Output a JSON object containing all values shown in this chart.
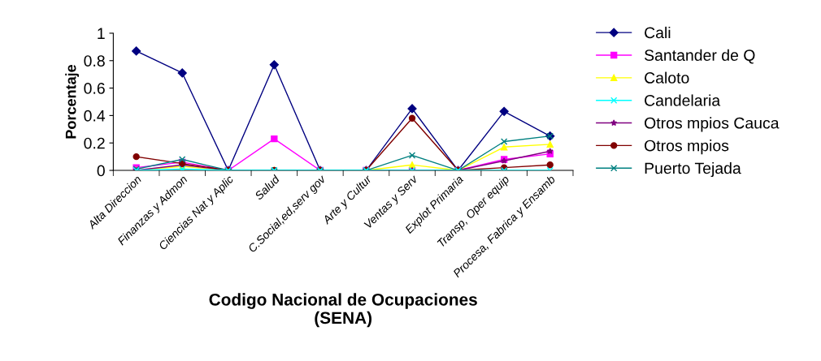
{
  "chart_data": {
    "type": "line",
    "xlabel": "Codigo Nacional de Ocupaciones\n(SENA)",
    "ylabel": "Porcentaje",
    "categories": [
      "Alta Direccion",
      "Finanzas y Admon",
      "Ciencias Nat y Aplic",
      "Salud",
      "C.Social,ed,serv gov",
      "Arte y Cultur",
      "Ventas y Serv",
      "Explot Primaria",
      "Transp, Oper equip",
      "Procesa, Fabrica y Ensamb"
    ],
    "ylim": [
      0,
      1
    ],
    "yticks": [
      0,
      0.2,
      0.4,
      0.6,
      0.8,
      1
    ],
    "grid": false,
    "legend": "right",
    "series": [
      {
        "name": "Cali",
        "color": "#000080",
        "marker": "diamond",
        "values": [
          0.87,
          0.71,
          0,
          0.77,
          0,
          0,
          0.45,
          0,
          0.43,
          0.25
        ]
      },
      {
        "name": "Santander de Q",
        "color": "#ff00ff",
        "marker": "square",
        "values": [
          0.02,
          0.06,
          0,
          0.23,
          0,
          0,
          0,
          0,
          0.08,
          0.12
        ]
      },
      {
        "name": "Caloto",
        "color": "#ffff00",
        "marker": "triangle",
        "values": [
          0,
          0.03,
          0,
          0,
          0,
          0,
          0.04,
          0,
          0.17,
          0.19
        ]
      },
      {
        "name": "Candelaria",
        "color": "#00ffff",
        "marker": "cross",
        "values": [
          0,
          0.01,
          0,
          0,
          0,
          0,
          0,
          0,
          0,
          0
        ]
      },
      {
        "name": "Otros mpios Cauca",
        "color": "#800080",
        "marker": "star",
        "values": [
          0,
          0.04,
          0,
          0,
          0,
          0,
          0,
          0,
          0.07,
          0.14
        ]
      },
      {
        "name": "Otros mpios",
        "color": "#800000",
        "marker": "circle",
        "values": [
          0.1,
          0.05,
          0,
          0,
          0,
          0,
          0.38,
          0,
          0.02,
          0.04
        ]
      },
      {
        "name": "Puerto Tejada",
        "color": "#008080",
        "marker": "cross",
        "values": [
          0.01,
          0.08,
          0,
          0,
          0,
          0,
          0.11,
          0,
          0.21,
          0.25
        ]
      }
    ]
  }
}
